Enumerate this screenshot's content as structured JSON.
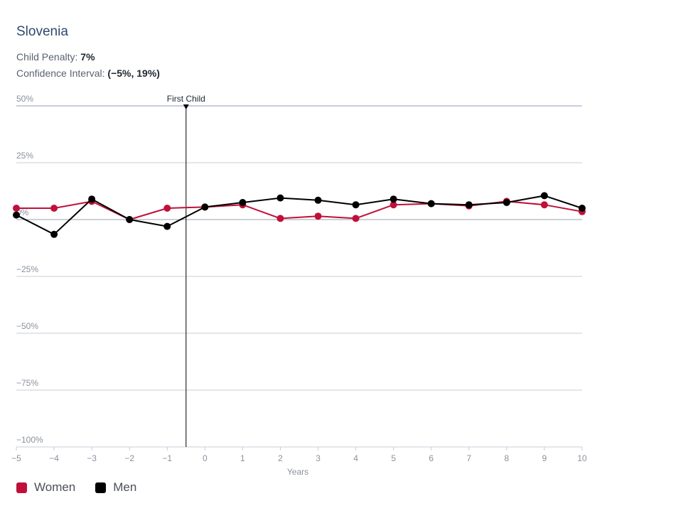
{
  "title": "Slovenia",
  "stats": {
    "penalty_label": "Child Penalty:",
    "penalty_value": "7%",
    "ci_label": "Confidence Interval:",
    "ci_value": "(−5%, 19%)"
  },
  "colors": {
    "women": "#c0103a",
    "men": "#000000",
    "grid": "#c9ccd6",
    "grid_top": "#b8bcd4",
    "tick": "#8a909c",
    "marker": "#000000"
  },
  "chart_data": {
    "type": "line",
    "x": [
      -5,
      -4,
      -3,
      -2,
      -1,
      0,
      1,
      2,
      3,
      4,
      5,
      6,
      7,
      8,
      9,
      10
    ],
    "xlabel": "Years",
    "xlim": [
      -5,
      10
    ],
    "ylim": [
      -100,
      50
    ],
    "yticks": [
      50,
      25,
      0,
      -25,
      -50,
      -75,
      -100
    ],
    "ytick_labels": [
      "50%",
      "25%",
      "0%",
      "−25%",
      "−50%",
      "−75%",
      "−100%"
    ],
    "xtick_labels": [
      "−5",
      "−4",
      "−3",
      "−2",
      "−1",
      "0",
      "1",
      "2",
      "3",
      "4",
      "5",
      "6",
      "7",
      "8",
      "9",
      "10"
    ],
    "grid": true,
    "legend_position": "bottom-left",
    "annotation": {
      "label": "First Child",
      "x": -0.5
    },
    "series": [
      {
        "name": "Women",
        "values": [
          5,
          5,
          8,
          0,
          5,
          5.5,
          6.5,
          0.5,
          1.5,
          0.5,
          6.5,
          7,
          6,
          8,
          6.5,
          3.5
        ]
      },
      {
        "name": "Men",
        "values": [
          2,
          -6.5,
          9,
          0,
          -3,
          5.5,
          7.5,
          9.5,
          8.5,
          6.5,
          9,
          7,
          6.5,
          7.5,
          10.5,
          5
        ]
      }
    ]
  }
}
